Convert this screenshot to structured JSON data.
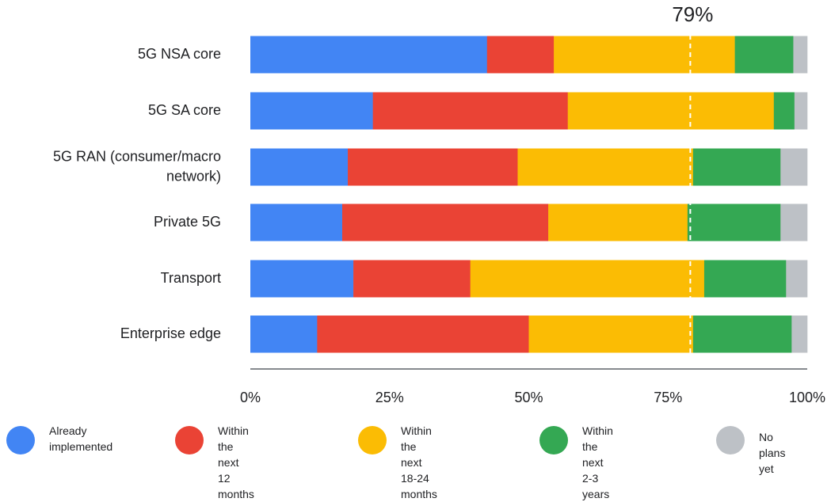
{
  "chart_data": {
    "type": "bar",
    "orientation": "horizontal",
    "stacked": true,
    "categories": [
      "5G NSA core",
      "5G SA core",
      "5G RAN (consumer/macro network)",
      "Private 5G",
      "Transport",
      "Enterprise edge"
    ],
    "category_lines": [
      [
        "5G NSA core"
      ],
      [
        "5G SA core"
      ],
      [
        "5G RAN (consumer/macro",
        "network)"
      ],
      [
        "Private 5G"
      ],
      [
        "Transport"
      ],
      [
        "Enterprise edge"
      ]
    ],
    "series": [
      {
        "name": "Already implemented",
        "label_lines": [
          "Already",
          "implemented"
        ],
        "color": "#4285F4",
        "values": [
          42.5,
          22,
          17.5,
          16.5,
          18.5,
          12
        ]
      },
      {
        "name": "Within the next 12 months",
        "label_lines": [
          "Within the",
          "next 12 months"
        ],
        "color": "#EA4335",
        "values": [
          12,
          35,
          30.5,
          37,
          21,
          38
        ]
      },
      {
        "name": "Within the next 18-24 months",
        "label_lines": [
          "Within the next",
          "18-24 months"
        ],
        "color": "#FBBC04",
        "values": [
          32.5,
          37,
          31.5,
          25,
          42,
          29.5
        ]
      },
      {
        "name": "Within the next 2-3 years",
        "label_lines": [
          "Within the",
          "next 2-3 years"
        ],
        "color": "#34A853",
        "values": [
          10.5,
          3.7,
          15.7,
          16.7,
          14.7,
          17.7
        ]
      },
      {
        "name": "No plans yet",
        "label_lines": [
          "No plans yet"
        ],
        "color": "#BDC1C6",
        "values": [
          2.5,
          2.3,
          4.8,
          4.8,
          3.8,
          2.8
        ]
      }
    ],
    "x_ticks": [
      "0%",
      "25%",
      "50%",
      "75%",
      "100%"
    ],
    "xlim": [
      0,
      100
    ],
    "reference_line": {
      "value": 79,
      "label": "79%",
      "style": "dashed",
      "color": "#FFFFFF"
    },
    "grid": false,
    "legend_position": "bottom"
  }
}
